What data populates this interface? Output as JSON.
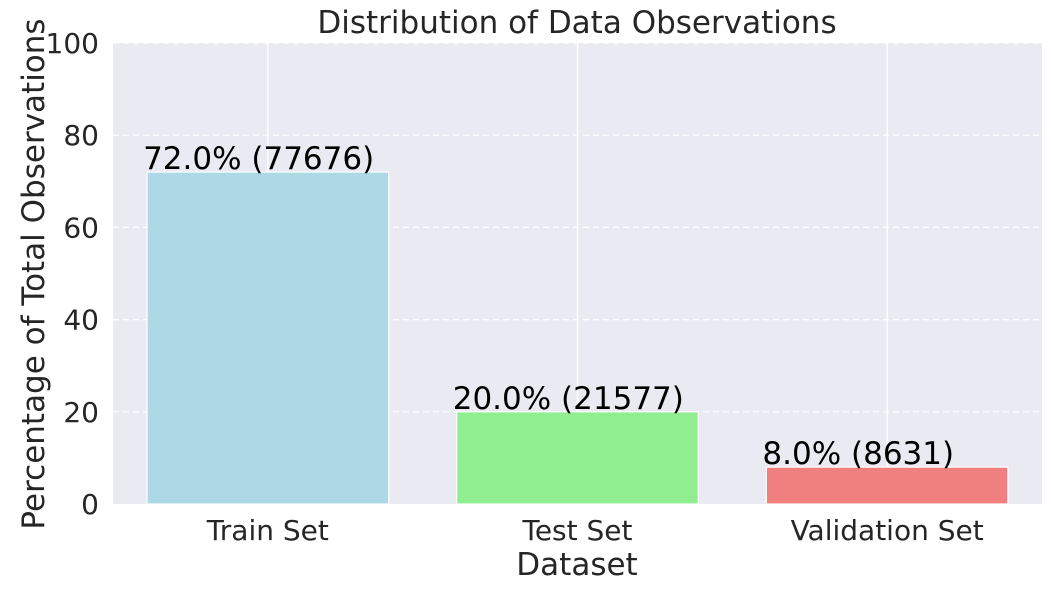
{
  "chart_data": {
    "type": "bar",
    "title": "Distribution of Data Observations",
    "xlabel": "Dataset",
    "ylabel": "Percentage of Total Observations",
    "categories": [
      "Train Set",
      "Test Set",
      "Validation Set"
    ],
    "values": [
      72.0,
      20.0,
      8.0
    ],
    "counts": [
      77676,
      21577,
      8631
    ],
    "data_labels": [
      "72.0% (77676)",
      "20.0% (21577)",
      "8.0% (8631)"
    ],
    "colors": [
      "#add8e6",
      "#90ee90",
      "#f08080"
    ],
    "ylim": [
      0,
      100
    ],
    "yticks": [
      0,
      20,
      40,
      60,
      80,
      100
    ],
    "ytick_labels": [
      "0",
      "20",
      "40",
      "60",
      "80",
      "100"
    ],
    "background_color": "#eaeaf2",
    "grid": true,
    "y_grid_style": "dashed",
    "x_grid_style": "solid"
  }
}
